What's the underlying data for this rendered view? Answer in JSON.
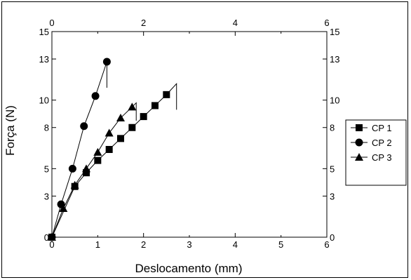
{
  "chart_data": {
    "type": "line",
    "xlabel": "Deslocamento (mm)",
    "ylabel": "Força (N)",
    "xlim": [
      0,
      6
    ],
    "ylim": [
      0,
      15
    ],
    "x_ticks": [
      0,
      2,
      4,
      6
    ],
    "x_tick_labels": [
      "0",
      "2",
      "4",
      "6"
    ],
    "x_minor_ticks": [
      1,
      3,
      5
    ],
    "x_minor_tick_labels": [
      "1",
      "3",
      "5"
    ],
    "y_ticks": [
      0,
      3,
      5,
      8,
      10,
      13,
      15
    ],
    "y_tick_labels": [
      "0",
      "3",
      "5",
      "8",
      "10",
      "13",
      "15"
    ],
    "top_axis_ticks": [
      0,
      2,
      4,
      6
    ],
    "right_axis_ticks": [
      0,
      3,
      5,
      8,
      10,
      13,
      15
    ],
    "grid": false,
    "legend": "right",
    "series": [
      {
        "name": "CP 1",
        "marker": "square",
        "x": [
          0,
          0.5,
          0.75,
          1.0,
          1.25,
          1.5,
          1.75,
          2.0,
          2.25,
          2.5
        ],
        "y": [
          0,
          3.7,
          4.7,
          5.6,
          6.4,
          7.2,
          8.0,
          8.8,
          9.6,
          10.4
        ],
        "tail": [
          [
            2.5,
            10.4
          ],
          [
            2.72,
            11.2
          ],
          [
            2.72,
            9.3
          ]
        ]
      },
      {
        "name": "CP 2",
        "marker": "circle",
        "x": [
          0,
          0.2,
          0.45,
          0.7,
          0.95,
          1.2
        ],
        "y": [
          0,
          2.4,
          5.0,
          8.1,
          10.3,
          12.8
        ],
        "tail": [
          [
            1.2,
            12.8
          ],
          [
            1.2,
            10.9
          ]
        ]
      },
      {
        "name": "CP 3",
        "marker": "triangle",
        "x": [
          0,
          0.25,
          0.5,
          0.75,
          1.0,
          1.25,
          1.5,
          1.75
        ],
        "y": [
          0,
          2.1,
          3.8,
          5.0,
          6.2,
          7.6,
          8.7,
          9.5
        ],
        "tail": [
          [
            1.75,
            9.5
          ],
          [
            1.84,
            9.8
          ],
          [
            1.84,
            8.5
          ]
        ]
      }
    ]
  }
}
